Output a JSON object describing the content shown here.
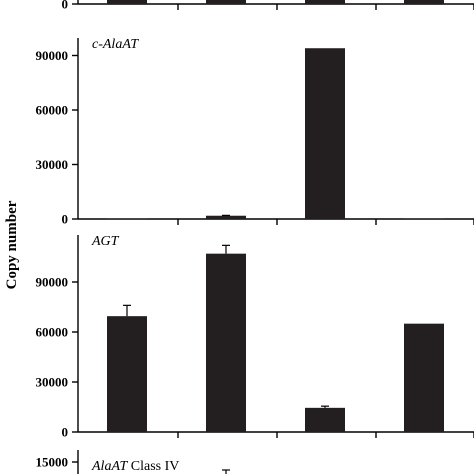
{
  "ylabel": "Copy number",
  "chart_data": [
    {
      "type": "bar",
      "panel": "top-partial",
      "title": "",
      "title_italic": "",
      "title_suffix": "",
      "categories": [
        "",
        "",
        "",
        ""
      ],
      "values": [
        null,
        null,
        null,
        null
      ],
      "errors": [
        0,
        0,
        0,
        0
      ],
      "yticks": [
        0
      ],
      "ylim": [
        0,
        15000
      ]
    },
    {
      "type": "bar",
      "panel": "c-AlaAT",
      "title": "c-AlaAT",
      "title_italic": "c-AlaAT",
      "title_suffix": "",
      "categories": [
        "",
        "",
        "",
        ""
      ],
      "values": [
        300,
        1800,
        94000,
        300
      ],
      "errors": [
        0,
        200,
        0,
        0
      ],
      "yticks": [
        0,
        30000,
        60000,
        90000
      ],
      "ytick_labels": [
        "0",
        "30000",
        "60000",
        "90000"
      ],
      "ylim": [
        0,
        99000
      ]
    },
    {
      "type": "bar",
      "panel": "AGT",
      "title": "AGT",
      "title_italic": "AGT",
      "title_suffix": "",
      "categories": [
        "",
        "",
        "",
        ""
      ],
      "values": [
        69500,
        107000,
        14500,
        65000
      ],
      "errors": [
        6500,
        5000,
        1000,
        0
      ],
      "yticks": [
        0,
        30000,
        60000,
        90000
      ],
      "ytick_labels": [
        "0",
        "30000",
        "60000",
        "90000"
      ],
      "ylim": [
        0,
        118000
      ]
    },
    {
      "type": "bar",
      "panel": "AlaAT Class IV",
      "title": "AlaAT Class IV",
      "title_italic": "AlaAT",
      "title_suffix": " Class IV",
      "categories": [
        "",
        "",
        "",
        ""
      ],
      "values": [
        null,
        null,
        null,
        null
      ],
      "errors": [
        0,
        0,
        0,
        0
      ],
      "yticks": [
        15000
      ],
      "ytick_labels": [
        "15000"
      ],
      "ylim": [
        0,
        15000
      ]
    }
  ]
}
